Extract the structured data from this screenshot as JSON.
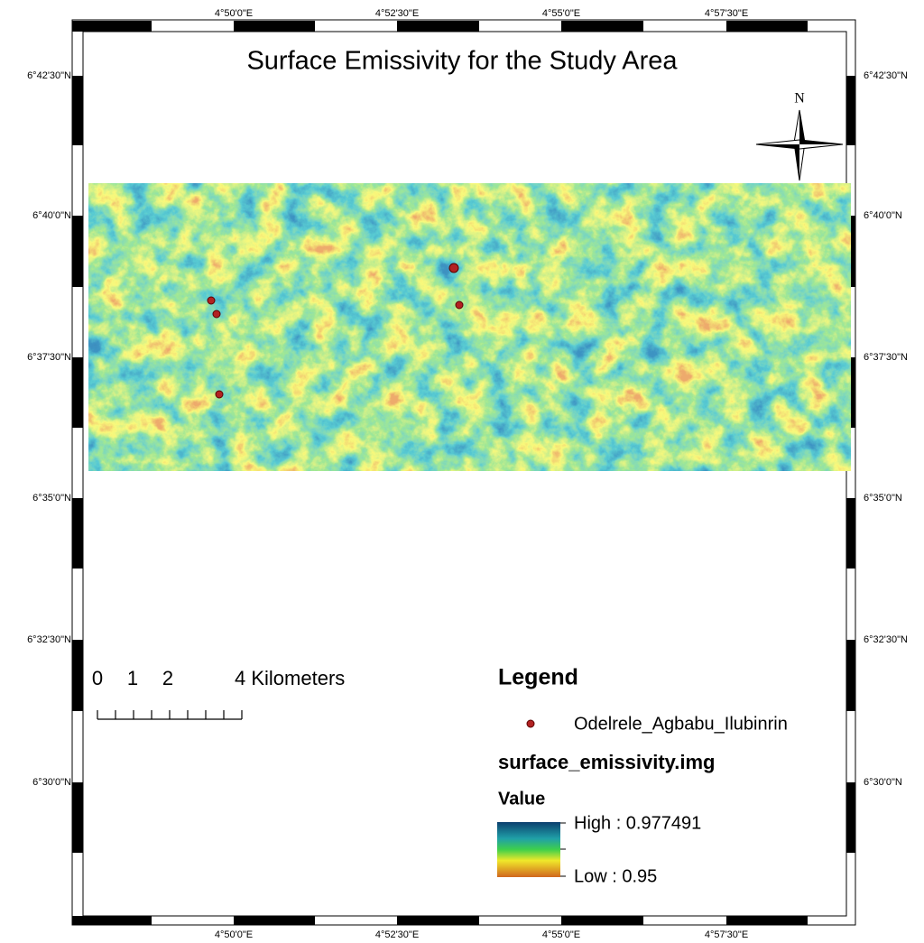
{
  "title": "Surface Emissivity for the Study Area",
  "north_arrow": "N",
  "graticule": {
    "longitudes": [
      "4°50'0\"E",
      "4°52'30\"E",
      "4°55'0\"E",
      "4°57'30\"E"
    ],
    "latitudes": [
      "6°42'30\"N",
      "6°40'0\"N",
      "6°37'30\"N",
      "6°35'0\"N",
      "6°32'30\"N",
      "6°30'0\"N"
    ]
  },
  "scale_bar": {
    "labels": [
      "0",
      "1",
      "2",
      "4 Kilometers"
    ]
  },
  "legend": {
    "title": "Legend",
    "points_layer": "Odelrele_Agbabu_Ilubinrin",
    "raster_layer": "surface_emissivity.img",
    "value_heading": "Value",
    "high": "High : 0.977491",
    "low": "Low : 0.95"
  }
}
